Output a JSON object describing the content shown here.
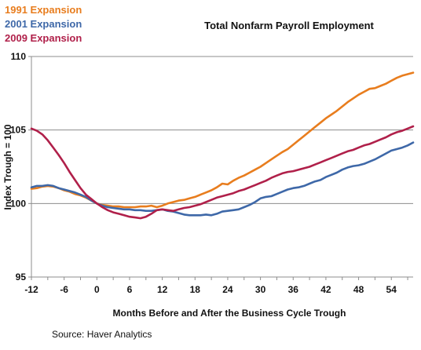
{
  "chart_data": {
    "type": "line",
    "title": "Total Nonfarm Payroll Employment",
    "xlabel": "Months Before and After the Business Cycle Trough",
    "ylabel": "Index Trough = 100",
    "source": "Source:  Haver Analytics",
    "xlim": [
      -12,
      58
    ],
    "ylim": [
      95,
      110
    ],
    "x_ticks": [
      -12,
      -6,
      0,
      6,
      12,
      18,
      24,
      30,
      36,
      42,
      48,
      54
    ],
    "x_tick_labels": [
      "-12",
      "-6",
      "0",
      "6",
      "12",
      "18",
      "24",
      "30",
      "36",
      "42",
      "48",
      "54"
    ],
    "y_ticks": [
      95,
      100,
      105,
      110
    ],
    "y_tick_labels": [
      "95",
      "100",
      "105",
      "110"
    ],
    "grid": "horizontal",
    "legend_placement": "top-left",
    "x": [
      -12,
      -11,
      -10,
      -9,
      -8,
      -7,
      -6,
      -5,
      -4,
      -3,
      -2,
      -1,
      0,
      1,
      2,
      3,
      4,
      5,
      6,
      7,
      8,
      9,
      10,
      11,
      12,
      13,
      14,
      15,
      16,
      17,
      18,
      19,
      20,
      21,
      22,
      23,
      24,
      25,
      26,
      27,
      28,
      29,
      30,
      31,
      32,
      33,
      34,
      35,
      36,
      37,
      38,
      39,
      40,
      41,
      42,
      43,
      44,
      45,
      46,
      47,
      48,
      49,
      50,
      51,
      52,
      53,
      54,
      55,
      56,
      57,
      58
    ],
    "series": [
      {
        "name": "1991 Expansion",
        "color": "#e87d1e",
        "values": [
          101.0,
          101.05,
          101.15,
          101.2,
          101.15,
          101.05,
          100.9,
          100.8,
          100.65,
          100.55,
          100.4,
          100.2,
          100.0,
          99.9,
          99.85,
          99.8,
          99.8,
          99.75,
          99.75,
          99.75,
          99.8,
          99.8,
          99.85,
          99.75,
          99.85,
          100.0,
          100.1,
          100.2,
          100.25,
          100.35,
          100.45,
          100.6,
          100.75,
          100.9,
          101.1,
          101.35,
          101.3,
          101.55,
          101.75,
          101.9,
          102.1,
          102.3,
          102.5,
          102.75,
          103.0,
          103.25,
          103.5,
          103.7,
          104.0,
          104.3,
          104.6,
          104.9,
          105.2,
          105.5,
          105.8,
          106.05,
          106.3,
          106.6,
          106.9,
          107.15,
          107.4,
          107.6,
          107.8,
          107.85,
          108.0,
          108.15,
          108.35,
          108.55,
          108.7,
          108.8,
          108.9
        ]
      },
      {
        "name": "2001 Expansion",
        "color": "#3e68a8",
        "values": [
          101.1,
          101.2,
          101.2,
          101.25,
          101.2,
          101.05,
          100.95,
          100.85,
          100.75,
          100.6,
          100.45,
          100.2,
          100.0,
          99.85,
          99.75,
          99.7,
          99.65,
          99.6,
          99.6,
          99.55,
          99.55,
          99.5,
          99.5,
          99.55,
          99.6,
          99.5,
          99.45,
          99.35,
          99.25,
          99.2,
          99.2,
          99.2,
          99.25,
          99.2,
          99.3,
          99.45,
          99.5,
          99.55,
          99.6,
          99.75,
          99.9,
          100.1,
          100.35,
          100.45,
          100.5,
          100.65,
          100.8,
          100.95,
          101.05,
          101.1,
          101.2,
          101.35,
          101.5,
          101.6,
          101.8,
          101.95,
          102.1,
          102.3,
          102.45,
          102.55,
          102.6,
          102.7,
          102.85,
          103.0,
          103.2,
          103.4,
          103.6,
          103.7,
          103.8,
          103.95,
          104.15
        ]
      },
      {
        "name": "2009 Expansion",
        "color": "#b0204a",
        "values": [
          105.1,
          104.95,
          104.7,
          104.3,
          103.8,
          103.3,
          102.75,
          102.15,
          101.6,
          101.05,
          100.6,
          100.3,
          100.0,
          99.75,
          99.55,
          99.4,
          99.3,
          99.2,
          99.1,
          99.05,
          99.0,
          99.1,
          99.3,
          99.55,
          99.6,
          99.55,
          99.5,
          99.6,
          99.7,
          99.75,
          99.85,
          99.95,
          100.1,
          100.25,
          100.4,
          100.5,
          100.6,
          100.7,
          100.85,
          100.95,
          101.1,
          101.25,
          101.4,
          101.55,
          101.75,
          101.9,
          102.05,
          102.15,
          102.2,
          102.3,
          102.4,
          102.5,
          102.65,
          102.8,
          102.95,
          103.1,
          103.25,
          103.4,
          103.55,
          103.65,
          103.8,
          103.95,
          104.05,
          104.2,
          104.35,
          104.5,
          104.7,
          104.85,
          104.95,
          105.1,
          105.25
        ]
      }
    ]
  }
}
